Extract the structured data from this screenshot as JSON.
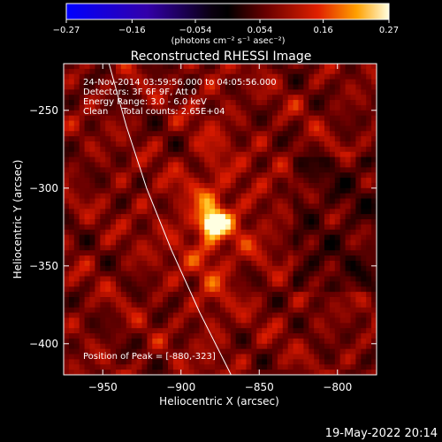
{
  "chart_data": {
    "type": "heatmap",
    "title": "Reconstructed RHESSI Image",
    "xlabel": "Heliocentric X (arcsec)",
    "ylabel": "Heliocentric Y (arcsec)",
    "xlim": [
      -975,
      -775
    ],
    "ylim": [
      -420,
      -220
    ],
    "xticks": [
      -950,
      -900,
      -850,
      -800
    ],
    "yticks": [
      -250,
      -300,
      -350,
      -400
    ],
    "xtick_labels": [
      "−950",
      "−900",
      "−850",
      "−800"
    ],
    "ytick_labels": [
      "−250",
      "−300",
      "−350",
      "−400"
    ],
    "colorbar": {
      "min": -0.27,
      "max": 0.27,
      "ticks": [
        -0.27,
        -0.16,
        -0.054,
        0.054,
        0.16,
        0.27
      ],
      "tick_labels": [
        "−0.27",
        "−0.16",
        "−0.054",
        "0.054",
        "0.16",
        "0.27"
      ],
      "units": "(photons cm⁻² s⁻¹ asec⁻²)"
    },
    "annotations": [
      "24-Nov-2014 03:59:56.000 to 04:05:56.000",
      "Detectors: 3F 6F 9F, Att 0",
      "Energy Range: 3.0 - 6.0 keV",
      "Clean     Total counts: 2.65E+04"
    ],
    "peak_label": "Position of Peak = [-880,-323]",
    "peak": {
      "x": -880,
      "y": -323,
      "value": 0.27
    },
    "limb_curve": [
      [
        -946,
        -220
      ],
      [
        -935,
        -260
      ],
      [
        -922,
        -300
      ],
      [
        -906,
        -340
      ],
      [
        -888,
        -380
      ],
      [
        -868,
        -420
      ]
    ],
    "timestamp": "19-May-2022 20:14"
  }
}
